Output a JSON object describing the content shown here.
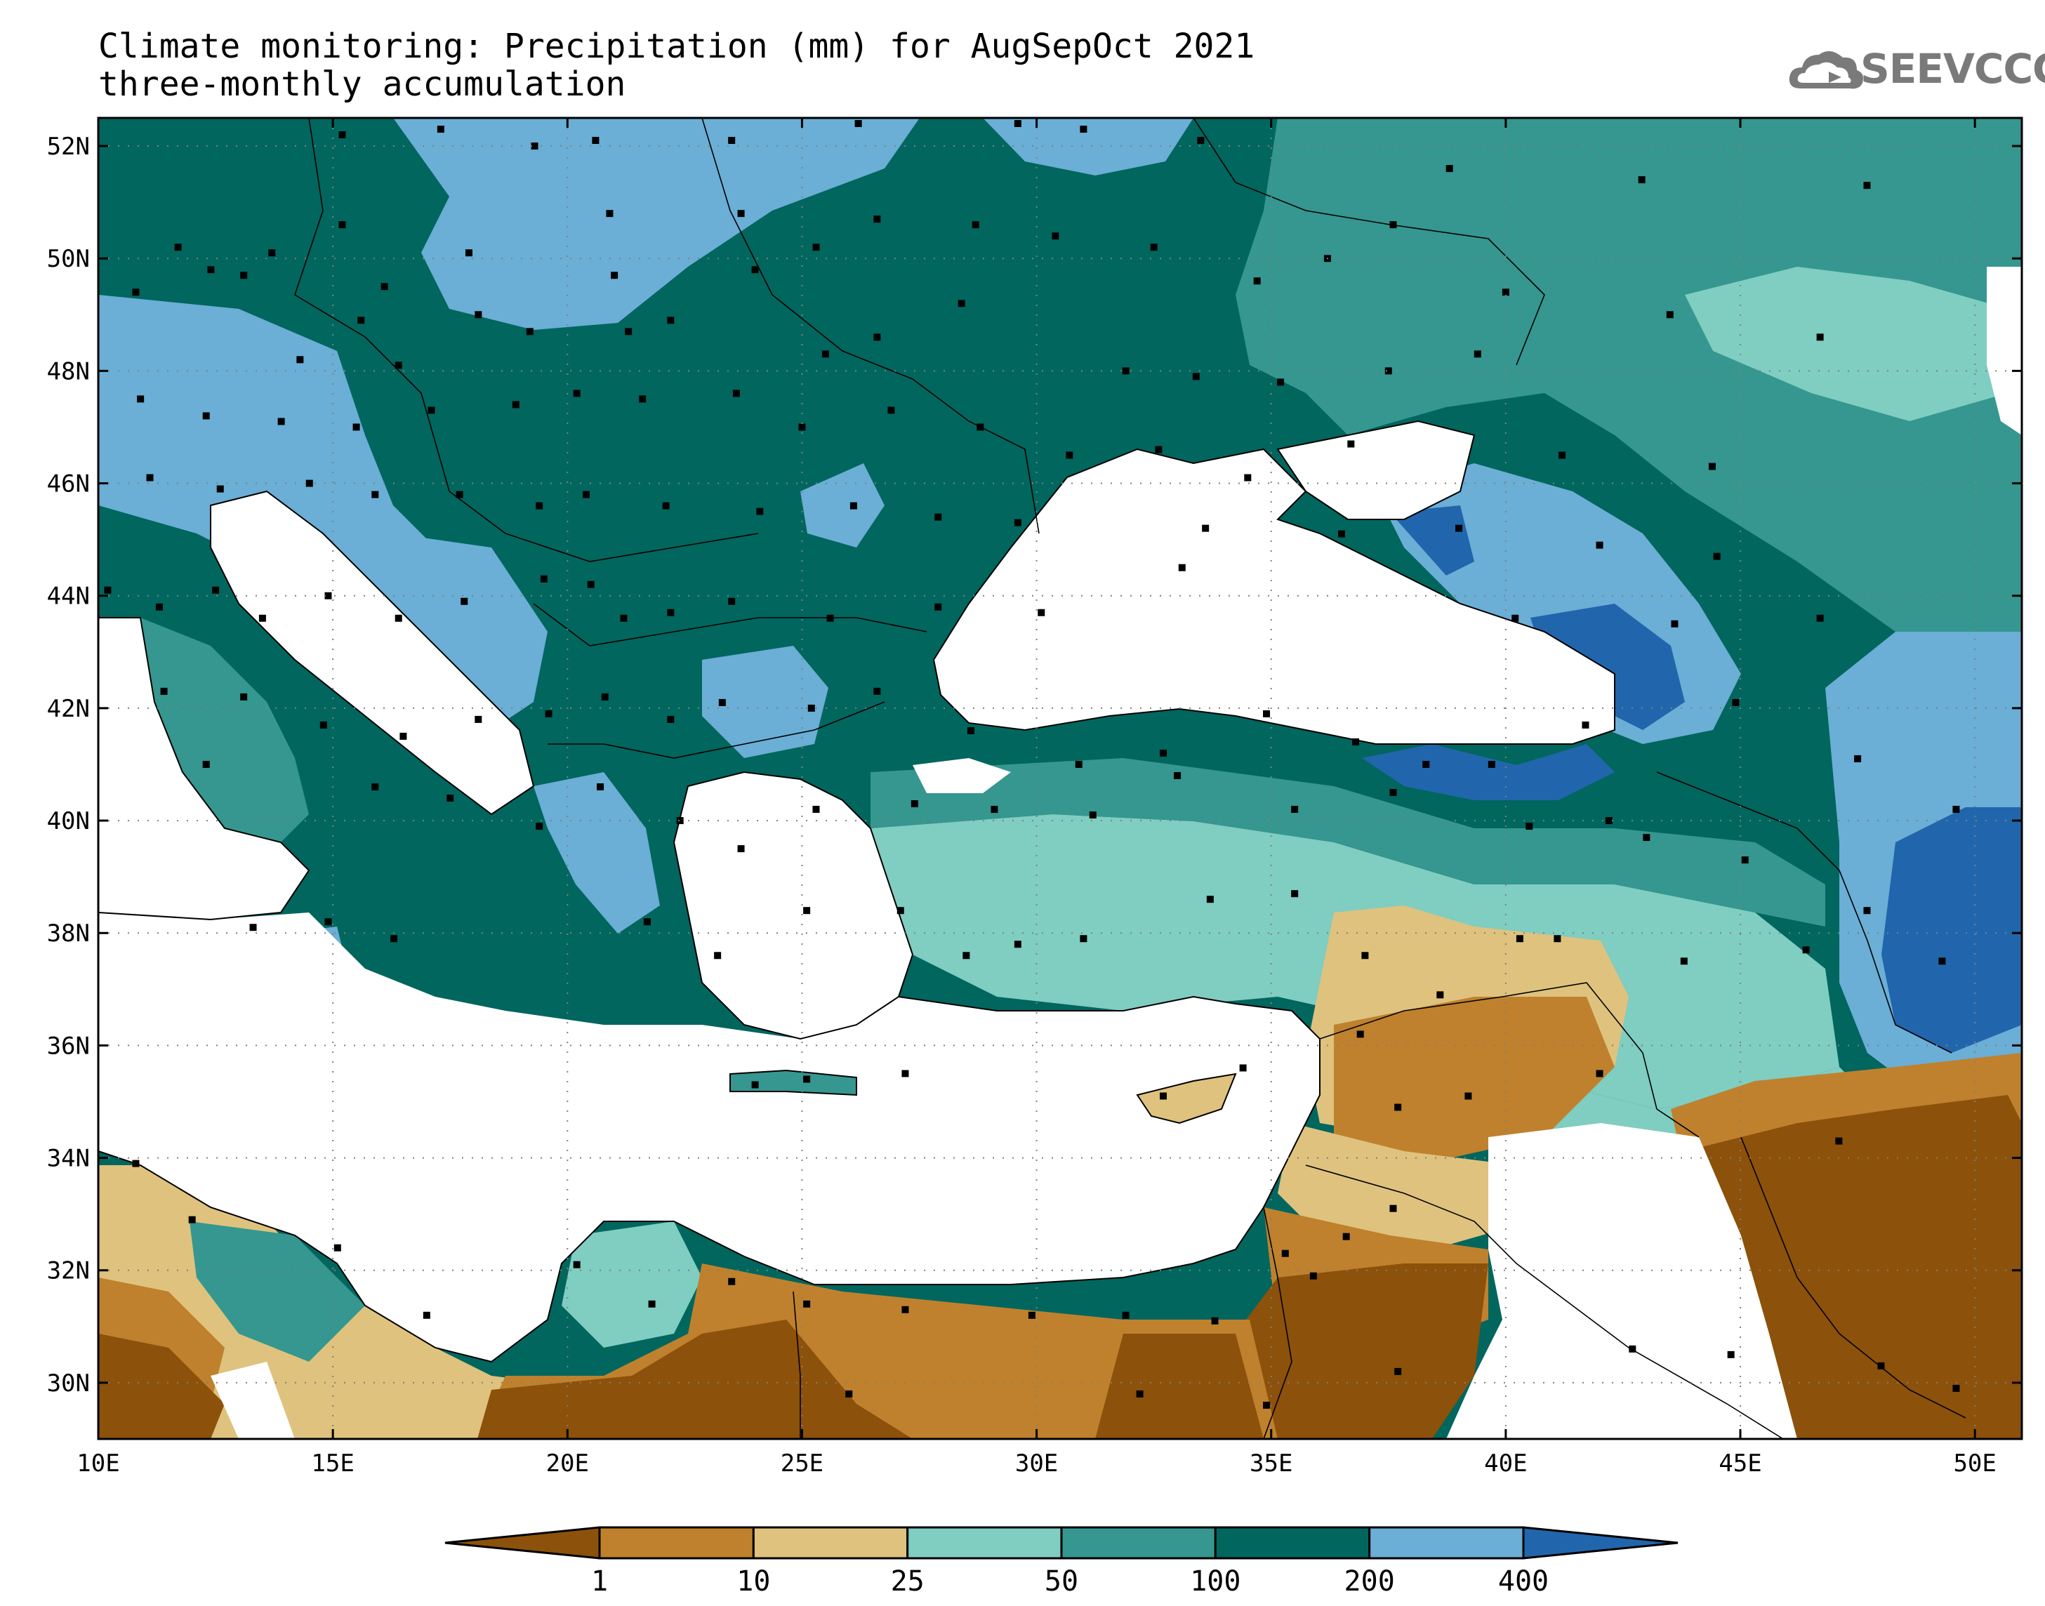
{
  "title_line_1": "Climate monitoring: Precipitation (mm) for AugSepOct 2021",
  "title_line_2": "three-monthly accumulation",
  "logo_text": "SEEVCCC",
  "map": {
    "lon_range": [
      10,
      51
    ],
    "lat_range": [
      29,
      52.5
    ],
    "lon_ticks": [
      10,
      15,
      20,
      25,
      30,
      35,
      40,
      45,
      50
    ],
    "lon_tick_labels": [
      "10E",
      "15E",
      "20E",
      "25E",
      "30E",
      "35E",
      "40E",
      "45E",
      "50E"
    ],
    "lat_ticks": [
      30,
      32,
      34,
      36,
      38,
      40,
      42,
      44,
      46,
      48,
      50,
      52
    ],
    "lat_tick_labels": [
      "30N",
      "32N",
      "34N",
      "36N",
      "38N",
      "40N",
      "42N",
      "44N",
      "46N",
      "48N",
      "50N",
      "52N"
    ],
    "grid": "dotted"
  },
  "colorbar": {
    "thresholds": [
      "1",
      "10",
      "25",
      "50",
      "100",
      "200",
      "400"
    ],
    "colors": [
      "#8c510a",
      "#bf812d",
      "#dfc27d",
      "#80cdc1",
      "#35978f",
      "#01665e",
      "#6baed6",
      "#2166ac"
    ],
    "extend": "both"
  },
  "region_colors": {
    "land_masked": "#ffffff",
    "sea": "#ffffff"
  }
}
